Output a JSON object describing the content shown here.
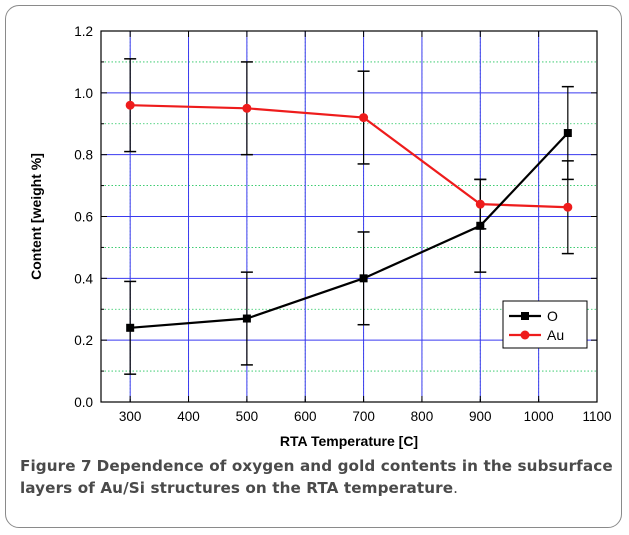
{
  "colors": {
    "grid_major": "#3a3af0",
    "grid_minor": "#22c55e",
    "axis": "#000000",
    "O": "#000000",
    "Au": "#ee1c1c",
    "errorbar": "#000000"
  },
  "chart_data": {
    "type": "line",
    "x": [
      300,
      500,
      700,
      900,
      1050
    ],
    "xlabel": "RTA Temperature [C]",
    "ylabel": "Content [weight %]",
    "xlim": [
      250,
      1100
    ],
    "ylim": [
      0.0,
      1.2
    ],
    "xticks": [
      "300",
      "400",
      "500",
      "600",
      "700",
      "800",
      "900",
      "1000",
      "1100"
    ],
    "yticks": [
      "0.0",
      "0.2",
      "0.4",
      "0.6",
      "0.8",
      "1.0",
      "1.2"
    ],
    "grid": true,
    "legend_position": "bottom-right",
    "series": [
      {
        "name": "O",
        "marker": "square",
        "values": [
          0.24,
          0.27,
          0.4,
          0.57,
          0.87
        ],
        "errors": [
          0.15,
          0.15,
          0.15,
          0.15,
          0.15
        ]
      },
      {
        "name": "Au",
        "marker": "circle",
        "values": [
          0.96,
          0.95,
          0.92,
          0.64,
          0.63
        ],
        "errors": [
          0.15,
          0.15,
          0.15,
          0.08,
          0.15
        ]
      }
    ]
  },
  "caption": {
    "lead": "Figure 7",
    "text": "Dependence of oxygen and gold contents in the subsurface layers of Au/Si structures on the RTA temperature",
    "end": "."
  }
}
